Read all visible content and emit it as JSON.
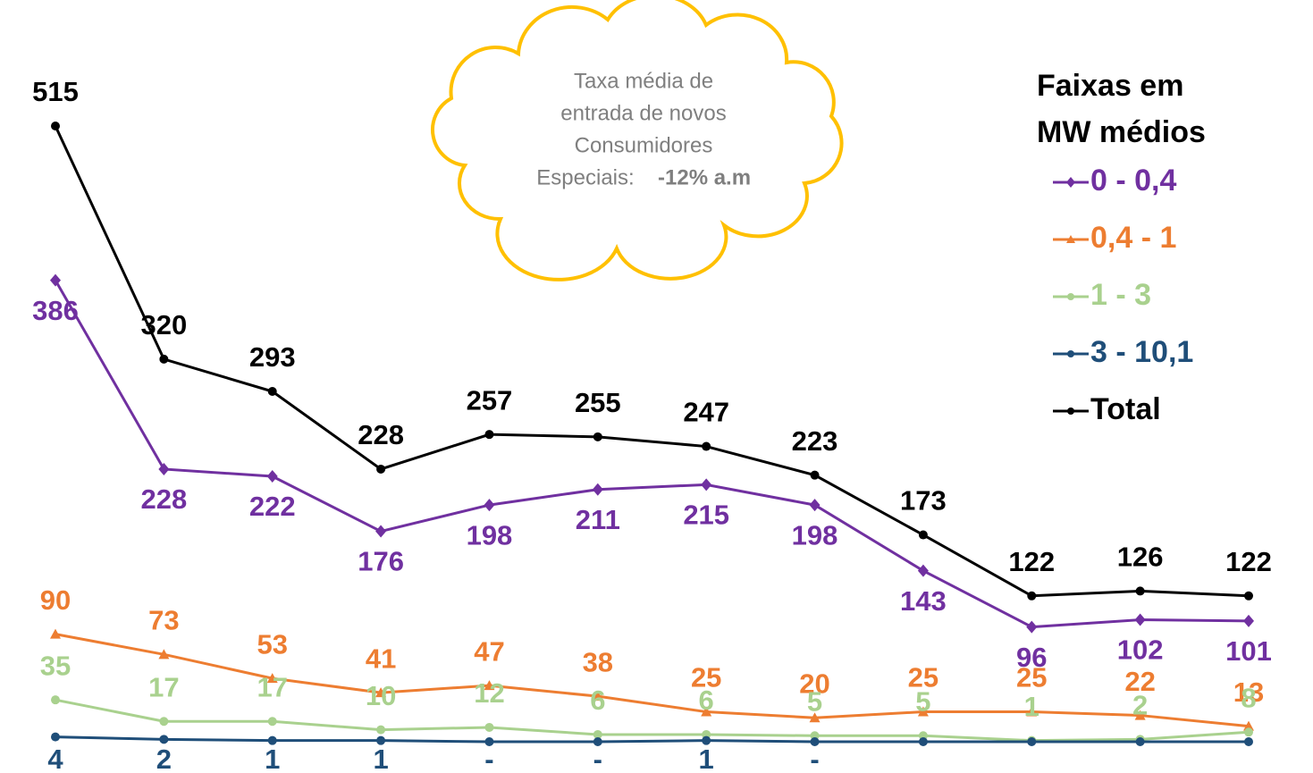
{
  "chart_data": {
    "type": "line",
    "categories": [
      null,
      null,
      null,
      null,
      null,
      null,
      null,
      null,
      null,
      null,
      null,
      null
    ],
    "ylim": [
      0,
      515
    ],
    "annotation": {
      "lines": [
        "Taxa média de",
        "entrada de novos",
        "Consumidores",
        "Especiais:"
      ],
      "highlight": "-12% a.m"
    },
    "legend_title": [
      "Faixas em",
      "MW médios"
    ],
    "legend_position": "upper right",
    "series": [
      {
        "name": "0 - 0,4",
        "color": "#7030a0",
        "marker": "diamond",
        "label_position": "below",
        "values": [
          386,
          228,
          222,
          176,
          198,
          211,
          215,
          198,
          143,
          96,
          102,
          101
        ]
      },
      {
        "name": "0,4 - 1",
        "color": "#ed7d31",
        "marker": "triangle",
        "label_position": "above",
        "values": [
          90,
          73,
          53,
          41,
          47,
          38,
          25,
          20,
          25,
          25,
          22,
          13
        ]
      },
      {
        "name": "1 - 3",
        "color": "#a9d18e",
        "marker": "circle",
        "label_position": "above",
        "values": [
          35,
          17,
          17,
          10,
          12,
          6,
          6,
          5,
          5,
          1,
          2,
          8
        ]
      },
      {
        "name": "3 - 10,1",
        "color": "#1f4e79",
        "marker": "circle",
        "label_position": "below",
        "values": [
          4,
          2,
          1,
          1,
          0,
          0,
          1,
          0,
          0,
          0,
          0,
          0
        ],
        "value_labels": [
          "4",
          "2",
          "1",
          "1",
          "-",
          "-",
          "1",
          "-",
          null,
          null,
          null,
          null
        ]
      },
      {
        "name": "Total",
        "color": "#000000",
        "marker": "circle",
        "label_position": "above",
        "values": [
          515,
          320,
          293,
          228,
          257,
          255,
          247,
          223,
          173,
          122,
          126,
          122
        ]
      }
    ]
  }
}
